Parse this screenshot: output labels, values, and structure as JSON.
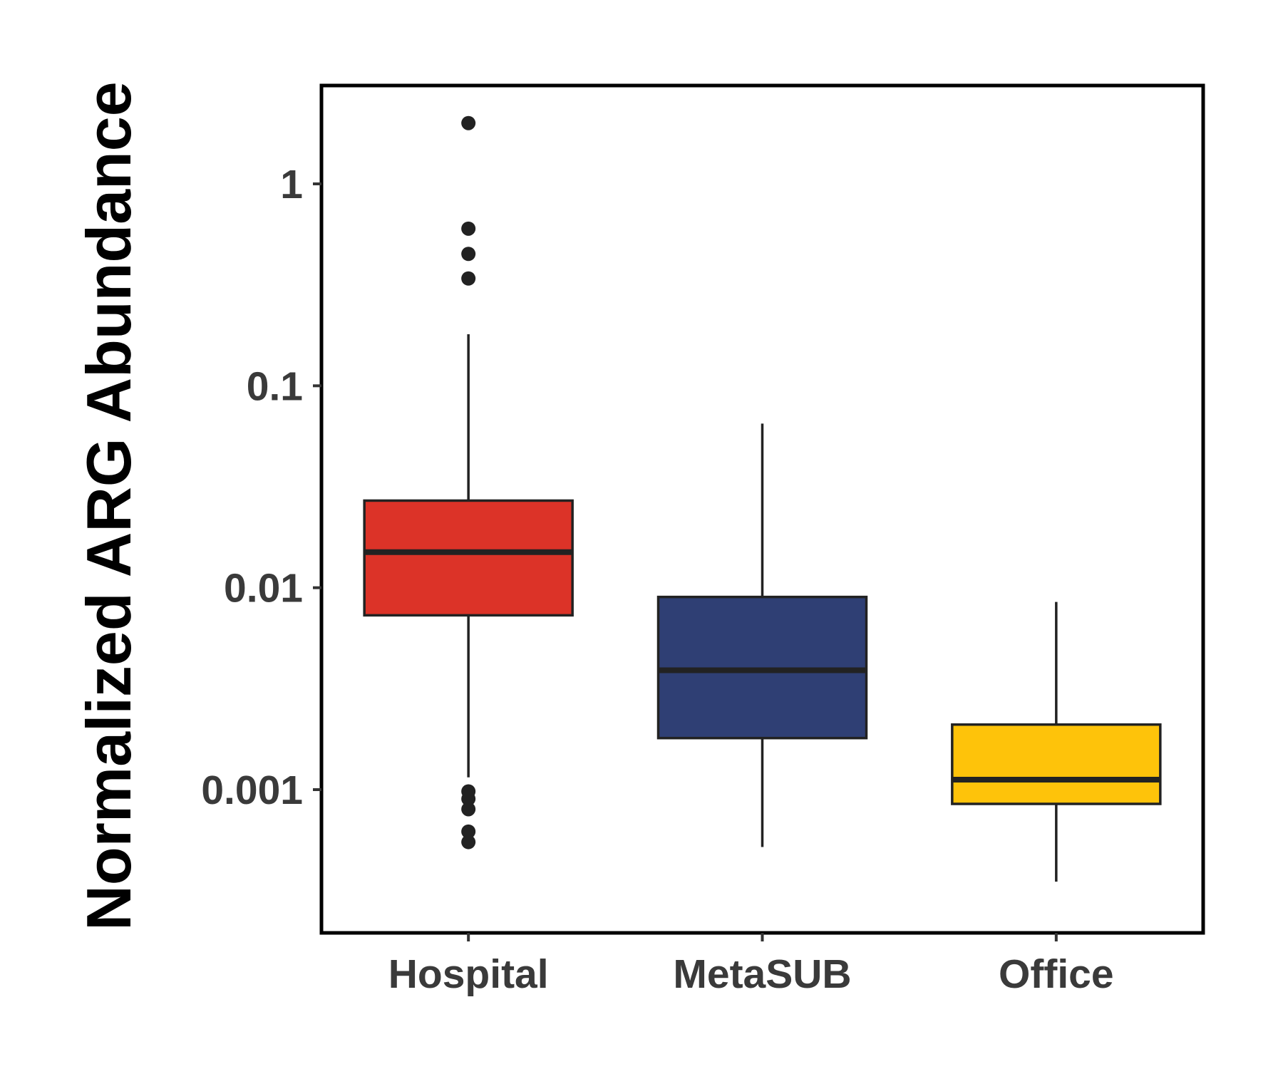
{
  "chart_data": {
    "type": "box",
    "title": "",
    "xlabel": "",
    "ylabel": "Normalized ARG Abundance",
    "y_scale": "log10",
    "ylim": [
      0.00022,
      3.0
    ],
    "y_ticks": [
      {
        "value": 0.001,
        "label": "0.001"
      },
      {
        "value": 0.01,
        "label": "0.01"
      },
      {
        "value": 0.1,
        "label": "0.1"
      },
      {
        "value": 1,
        "label": "1"
      }
    ],
    "grid": false,
    "legend": "none",
    "categories": [
      "Hospital",
      "MetaSUB",
      "Office"
    ],
    "boxes": [
      {
        "category": "Hospital",
        "color": "#DC3328",
        "whisker_low": 0.00115,
        "q1": 0.0073,
        "median": 0.015,
        "q3": 0.027,
        "whisker_high": 0.18,
        "outliers": [
          2.0,
          0.6,
          0.45,
          0.34,
          0.00098,
          0.0009,
          0.0008,
          0.00062,
          0.00055
        ]
      },
      {
        "category": "MetaSUB",
        "color": "#2F3F74",
        "whisker_low": 0.00052,
        "q1": 0.0018,
        "median": 0.0039,
        "q3": 0.009,
        "whisker_high": 0.065,
        "outliers": []
      },
      {
        "category": "Office",
        "color": "#FEC30A",
        "whisker_low": 0.00035,
        "q1": 0.00085,
        "median": 0.00112,
        "q3": 0.0021,
        "whisker_high": 0.0085,
        "outliers": []
      }
    ]
  }
}
